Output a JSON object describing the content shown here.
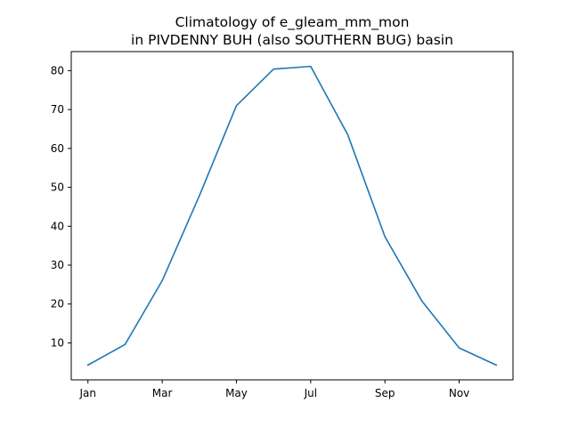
{
  "chart_data": {
    "type": "line",
    "title": [
      "Climatology of e_gleam_mm_mon",
      "in PIVDENNY BUH (also SOUTHERN BUG) basin"
    ],
    "xlabel": "",
    "ylabel": "",
    "x": [
      1,
      2,
      3,
      4,
      5,
      6,
      7,
      8,
      9,
      10,
      11,
      12
    ],
    "xticks": [
      {
        "value": 1,
        "label": "Jan"
      },
      {
        "value": 3,
        "label": "Mar"
      },
      {
        "value": 5,
        "label": "May"
      },
      {
        "value": 7,
        "label": "Jul"
      },
      {
        "value": 9,
        "label": "Sep"
      },
      {
        "value": 11,
        "label": "Nov"
      }
    ],
    "yticks": [
      10,
      20,
      30,
      40,
      50,
      60,
      70,
      80
    ],
    "xlim": [
      0.55,
      12.45
    ],
    "ylim": [
      0.5,
      84.9
    ],
    "grid": false,
    "series": [
      {
        "color": "#1f77b4",
        "values": [
          4.3,
          9.6,
          26.0,
          47.8,
          71.0,
          80.4,
          81.1,
          63.5,
          37.3,
          20.7,
          8.7,
          4.3
        ]
      }
    ]
  }
}
